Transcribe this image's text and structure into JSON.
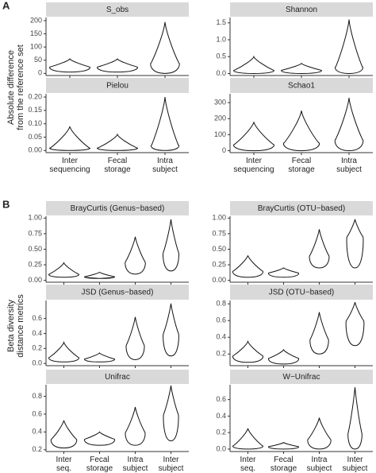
{
  "chart_data": {
    "panels": [
      {
        "label": "A",
        "ylabel": [
          "Absolute difference",
          "from the reference set"
        ],
        "categories": [
          [
            "Inter",
            "sequencing"
          ],
          [
            "Fecal",
            "storage"
          ],
          [
            "Intra",
            "subject"
          ]
        ],
        "charts": [
          {
            "type": "violin",
            "title": "S_obs",
            "ylim": [
              -8,
              212
            ],
            "yticks": [
              0,
              50,
              100,
              150,
              200
            ],
            "min": [
              5,
              5,
              0
            ],
            "mode": [
              25,
              25,
              40
            ],
            "max": [
              55,
              55,
              195
            ]
          },
          {
            "type": "violin",
            "title": "Shannon",
            "ylim": [
              -0.06,
              1.66
            ],
            "yticks": [
              {
                "value": 0,
                "label": "0.0"
              },
              {
                "value": 0.5,
                "label": "0.5"
              },
              {
                "value": 1,
                "label": "1.0"
              },
              {
                "value": 1.5,
                "label": "1.5"
              }
            ],
            "min": [
              0,
              0,
              0
            ],
            "mode": [
              0.1,
              0.1,
              0.2
            ],
            "max": [
              0.5,
              0.3,
              1.6
            ]
          },
          {
            "type": "violin",
            "title": "Pielou",
            "ylim": [
              -0.008,
              0.212
            ],
            "yticks": [
              {
                "value": 0,
                "label": "0.00"
              },
              {
                "value": 0.05,
                "label": "0.05"
              },
              {
                "value": 0.1,
                "label": "0.10"
              },
              {
                "value": 0.15,
                "label": "0.15"
              },
              {
                "value": 0.2,
                "label": "0.20"
              }
            ],
            "min": [
              0,
              0,
              0
            ],
            "mode": [
              0.01,
              0.01,
              0.02
            ],
            "max": [
              0.09,
              0.06,
              0.2
            ]
          },
          {
            "type": "violin",
            "title": "Schao1",
            "ylim": [
              -12,
              355
            ],
            "yticks": [
              0,
              100,
              200,
              300
            ],
            "min": [
              0,
              0,
              0
            ],
            "mode": [
              40,
              50,
              70
            ],
            "max": [
              180,
              250,
              330
            ]
          }
        ]
      },
      {
        "label": "B",
        "ylabel": [
          "Beta diversity",
          "distance metrics"
        ],
        "categories": [
          [
            "Inter",
            "seq."
          ],
          [
            "Fecal",
            "storage"
          ],
          [
            "Intra",
            "subject"
          ],
          [
            "Inter",
            "subject"
          ]
        ],
        "charts": [
          {
            "type": "violin",
            "title": "BrayCurtis (Genus−based)",
            "ylim": [
              -0.03,
              1.03
            ],
            "yticks": [
              {
                "value": 0,
                "label": "0.00"
              },
              {
                "value": 0.25,
                "label": "0.25"
              },
              {
                "value": 0.5,
                "label": "0.50"
              },
              {
                "value": 0.75,
                "label": "0.75"
              },
              {
                "value": 1,
                "label": "1.00"
              }
            ],
            "min": [
              0.05,
              0.03,
              0.1,
              0.15
            ],
            "mode": [
              0.1,
              0.06,
              0.3,
              0.45
            ],
            "max": [
              0.28,
              0.13,
              0.7,
              0.98
            ]
          },
          {
            "type": "violin",
            "title": "BrayCurtis (OTU−based)",
            "ylim": [
              -0.03,
              1.03
            ],
            "yticks": [
              {
                "value": 0,
                "label": "0.00"
              },
              {
                "value": 0.25,
                "label": "0.25"
              },
              {
                "value": 0.5,
                "label": "0.50"
              },
              {
                "value": 0.75,
                "label": "0.75"
              },
              {
                "value": 1,
                "label": "1.00"
              }
            ],
            "min": [
              0.05,
              0.05,
              0.2,
              0.2
            ],
            "mode": [
              0.15,
              0.12,
              0.4,
              0.7
            ],
            "max": [
              0.4,
              0.2,
              0.82,
              0.98
            ]
          },
          {
            "type": "violin",
            "title": "JSD (Genus−based)",
            "ylim": [
              -0.03,
              0.84
            ],
            "yticks": [
              {
                "value": 0,
                "label": "0.0"
              },
              0.2,
              0.4,
              0.6
            ],
            "min": [
              0.02,
              0.02,
              0.05,
              0.1
            ],
            "mode": [
              0.08,
              0.06,
              0.25,
              0.4
            ],
            "max": [
              0.28,
              0.14,
              0.62,
              0.8
            ]
          },
          {
            "type": "violin",
            "title": "JSD (OTU−based)",
            "ylim": [
              0.06,
              0.84
            ],
            "yticks": [
              0.2,
              0.4,
              0.6,
              0.8
            ],
            "min": [
              0.1,
              0.08,
              0.2,
              0.3
            ],
            "mode": [
              0.18,
              0.15,
              0.38,
              0.6
            ],
            "max": [
              0.35,
              0.25,
              0.7,
              0.82
            ]
          },
          {
            "type": "violin",
            "title": "Unifrac",
            "ylim": [
              0.18,
              0.93
            ],
            "yticks": [
              0.2,
              0.4,
              0.6,
              0.8
            ],
            "min": [
              0.22,
              0.25,
              0.25,
              0.3
            ],
            "mode": [
              0.32,
              0.32,
              0.4,
              0.6
            ],
            "max": [
              0.53,
              0.4,
              0.68,
              0.92
            ]
          },
          {
            "type": "violin",
            "title": "W−Unifrac",
            "ylim": [
              -0.03,
              0.78
            ],
            "yticks": [
              {
                "value": 0,
                "label": "0.0"
              },
              0.2,
              0.4,
              0.6
            ],
            "min": [
              0,
              0,
              0,
              0
            ],
            "mode": [
              0.04,
              0.03,
              0.12,
              0.2
            ],
            "max": [
              0.25,
              0.08,
              0.38,
              0.75
            ]
          }
        ]
      }
    ]
  }
}
